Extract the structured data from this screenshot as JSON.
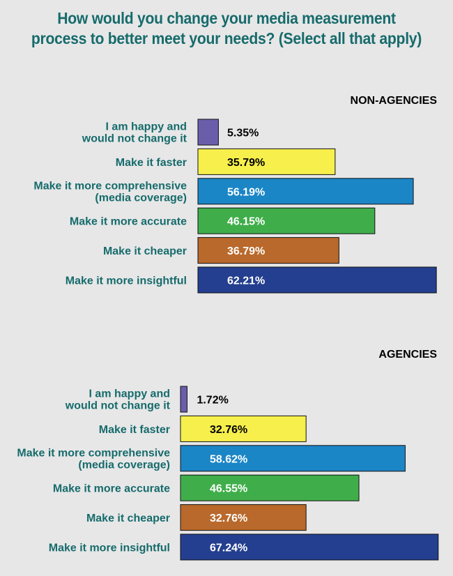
{
  "title_line1": "How would you change your media measurement",
  "title_line2": "process to better meet your needs? (Select all that apply)",
  "chart_data": [
    {
      "type": "bar",
      "orientation": "horizontal",
      "title": "NON-AGENCIES",
      "categories": [
        [
          "I am happy and",
          "would not change it"
        ],
        [
          "Make it faster"
        ],
        [
          "Make it more comprehensive",
          "(media coverage)"
        ],
        [
          "Make it more accurate"
        ],
        [
          "Make it cheaper"
        ],
        [
          "Make it more insightful"
        ]
      ],
      "values": [
        5.35,
        35.79,
        56.19,
        46.15,
        36.79,
        62.21
      ],
      "value_labels": [
        "5.35%",
        "35.79%",
        "56.19%",
        "46.15%",
        "36.79%",
        "62.21%"
      ],
      "colors": [
        "#6a5eab",
        "#f7ef4c",
        "#1b86c6",
        "#3fae4a",
        "#b9692b",
        "#243f8f"
      ],
      "label_colors": [
        "#000000",
        "#000000",
        "#ffffff",
        "#ffffff",
        "#ffffff",
        "#ffffff"
      ]
    },
    {
      "type": "bar",
      "orientation": "horizontal",
      "title": "AGENCIES",
      "categories": [
        [
          "I am happy and",
          "would not change it"
        ],
        [
          "Make it faster"
        ],
        [
          "Make it more comprehensive",
          "(media coverage)"
        ],
        [
          "Make it more accurate"
        ],
        [
          "Make it cheaper"
        ],
        [
          "Make it more insightful"
        ]
      ],
      "values": [
        1.72,
        32.76,
        58.62,
        46.55,
        32.76,
        67.24
      ],
      "value_labels": [
        "1.72%",
        "32.76%",
        "58.62%",
        "46.55%",
        "32.76%",
        "67.24%"
      ],
      "colors": [
        "#6a5eab",
        "#f7ef4c",
        "#1b86c6",
        "#3fae4a",
        "#b9692b",
        "#243f8f"
      ],
      "label_colors": [
        "#000000",
        "#000000",
        "#ffffff",
        "#ffffff",
        "#ffffff",
        "#ffffff"
      ]
    }
  ]
}
